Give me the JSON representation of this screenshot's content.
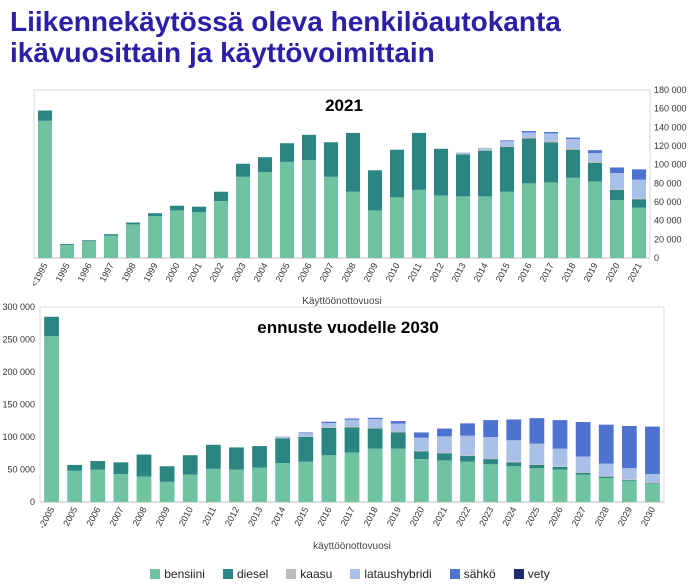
{
  "title": "Liikennekäytössä oleva henkilöautokanta ikävuosittain ja käyttövoimittain",
  "legend": [
    {
      "name": "bensiini",
      "color": "#6fc2a2"
    },
    {
      "name": "diesel",
      "color": "#2b8582"
    },
    {
      "name": "kaasu",
      "color": "#bdbdbd"
    },
    {
      "name": "lataushybridi",
      "color": "#a9c1e9"
    },
    {
      "name": "sähkö",
      "color": "#4f72d0"
    },
    {
      "name": "vety",
      "color": "#1d2b6b"
    }
  ],
  "chart_data": [
    {
      "type": "bar",
      "stacked": true,
      "title": "2021",
      "xlabel": "Käyttöönottovuosi",
      "ylabel": "",
      "ylim": [
        0,
        180000
      ],
      "y_axis_position": "right",
      "yticks": [
        "0",
        "20 000",
        "40 000",
        "60 000",
        "80 000",
        "100 000",
        "120 000",
        "140 000",
        "160 000",
        "180 000"
      ],
      "categories": [
        "<1995",
        "1995",
        "1996",
        "1997",
        "1998",
        "1999",
        "2000",
        "2001",
        "2002",
        "2003",
        "2004",
        "2005",
        "2006",
        "2007",
        "2008",
        "2009",
        "2010",
        "2011",
        "2012",
        "2013",
        "2014",
        "2015",
        "2016",
        "2017",
        "2018",
        "2019",
        "2020",
        "2021"
      ],
      "series": [
        {
          "name": "bensiini",
          "values": [
            147000,
            14000,
            18000,
            24000,
            36000,
            45000,
            51000,
            49000,
            61000,
            87000,
            92000,
            103000,
            105000,
            87000,
            71000,
            51000,
            65000,
            73000,
            67000,
            66000,
            66000,
            71000,
            80000,
            81000,
            86000,
            82000,
            62000,
            54000
          ]
        },
        {
          "name": "diesel",
          "values": [
            11000,
            1000,
            1000,
            1500,
            2000,
            3000,
            5000,
            6000,
            10000,
            14000,
            16000,
            20000,
            27000,
            37000,
            63000,
            43000,
            51000,
            61000,
            50000,
            45000,
            49000,
            48000,
            48000,
            43000,
            30000,
            20000,
            11000,
            9000
          ]
        },
        {
          "name": "kaasu",
          "values": [
            0,
            0,
            0,
            0,
            0,
            0,
            0,
            0,
            0,
            0,
            0,
            0,
            0,
            0,
            0,
            0,
            0,
            0,
            0,
            1000,
            1000,
            1000,
            1500,
            1500,
            1500,
            1500,
            1000,
            1000
          ]
        },
        {
          "name": "lataushybridi",
          "values": [
            0,
            0,
            0,
            0,
            0,
            0,
            0,
            0,
            0,
            0,
            0,
            0,
            0,
            0,
            0,
            0,
            0,
            0,
            0,
            1000,
            2000,
            5000,
            5000,
            8000,
            10000,
            9000,
            17000,
            20000
          ]
        },
        {
          "name": "sähkö",
          "values": [
            0,
            0,
            0,
            0,
            0,
            0,
            0,
            0,
            0,
            0,
            0,
            0,
            0,
            0,
            0,
            0,
            0,
            0,
            0,
            0,
            0,
            1000,
            1500,
            1500,
            1500,
            3000,
            6000,
            11000
          ]
        },
        {
          "name": "vety",
          "values": [
            0,
            0,
            0,
            0,
            0,
            0,
            0,
            0,
            0,
            0,
            0,
            0,
            0,
            0,
            0,
            0,
            0,
            0,
            0,
            0,
            0,
            0,
            0,
            0,
            0,
            0,
            0,
            0
          ]
        }
      ]
    },
    {
      "type": "bar",
      "stacked": true,
      "title": "ennuste vuodelle 2030",
      "xlabel": "käyttöönottovuosi",
      "ylabel": "",
      "ylim": [
        0,
        300000
      ],
      "y_axis_position": "left",
      "yticks": [
        "0",
        "50 000",
        "100 000",
        "150 000",
        "200 000",
        "250 000",
        "300 000"
      ],
      "categories": [
        "-2005",
        "2005",
        "2006",
        "2007",
        "2008",
        "2009",
        "2010",
        "2011",
        "2012",
        "2013",
        "2014",
        "2015",
        "2016",
        "2017",
        "2018",
        "2019",
        "2020",
        "2021",
        "2022",
        "2023",
        "2024",
        "2025",
        "2026",
        "2027",
        "2028",
        "2029",
        "2030"
      ],
      "series": [
        {
          "name": "bensiini",
          "values": [
            255000,
            48000,
            50000,
            43000,
            39000,
            31000,
            42000,
            51000,
            50000,
            53000,
            60000,
            62000,
            72000,
            76000,
            82000,
            82000,
            66000,
            64000,
            62000,
            58000,
            55000,
            52000,
            50000,
            42000,
            37000,
            33000,
            28000
          ]
        },
        {
          "name": "diesel",
          "values": [
            30000,
            9000,
            13000,
            18000,
            34000,
            24000,
            30000,
            37000,
            34000,
            33000,
            38000,
            38000,
            42000,
            39000,
            31000,
            25000,
            12000,
            11000,
            9000,
            8000,
            6000,
            5000,
            4000,
            3000,
            2000,
            1000,
            1000
          ]
        },
        {
          "name": "kaasu",
          "values": [
            0,
            0,
            0,
            0,
            0,
            0,
            0,
            0,
            0,
            0,
            1000,
            1000,
            1500,
            1500,
            1500,
            1500,
            1000,
            1000,
            1000,
            1000,
            1000,
            1000,
            1000,
            1000,
            1000,
            1000,
            1000
          ]
        },
        {
          "name": "lataushybridi",
          "values": [
            0,
            0,
            0,
            0,
            0,
            0,
            0,
            0,
            0,
            0,
            2000,
            5000,
            6000,
            10000,
            13000,
            12000,
            20000,
            25000,
            30000,
            33000,
            33000,
            32000,
            27000,
            24000,
            19000,
            17000,
            13000
          ]
        },
        {
          "name": "sähkö",
          "values": [
            0,
            0,
            0,
            0,
            0,
            0,
            0,
            0,
            0,
            0,
            0,
            1000,
            2000,
            2000,
            2000,
            4000,
            8000,
            12000,
            19000,
            26000,
            32000,
            39000,
            44000,
            53000,
            60000,
            65000,
            73000
          ]
        },
        {
          "name": "vety",
          "values": [
            0,
            0,
            0,
            0,
            0,
            0,
            0,
            0,
            0,
            0,
            0,
            0,
            0,
            0,
            0,
            0,
            0,
            0,
            0,
            0,
            0,
            0,
            0,
            0,
            0,
            0,
            0
          ]
        }
      ]
    }
  ]
}
